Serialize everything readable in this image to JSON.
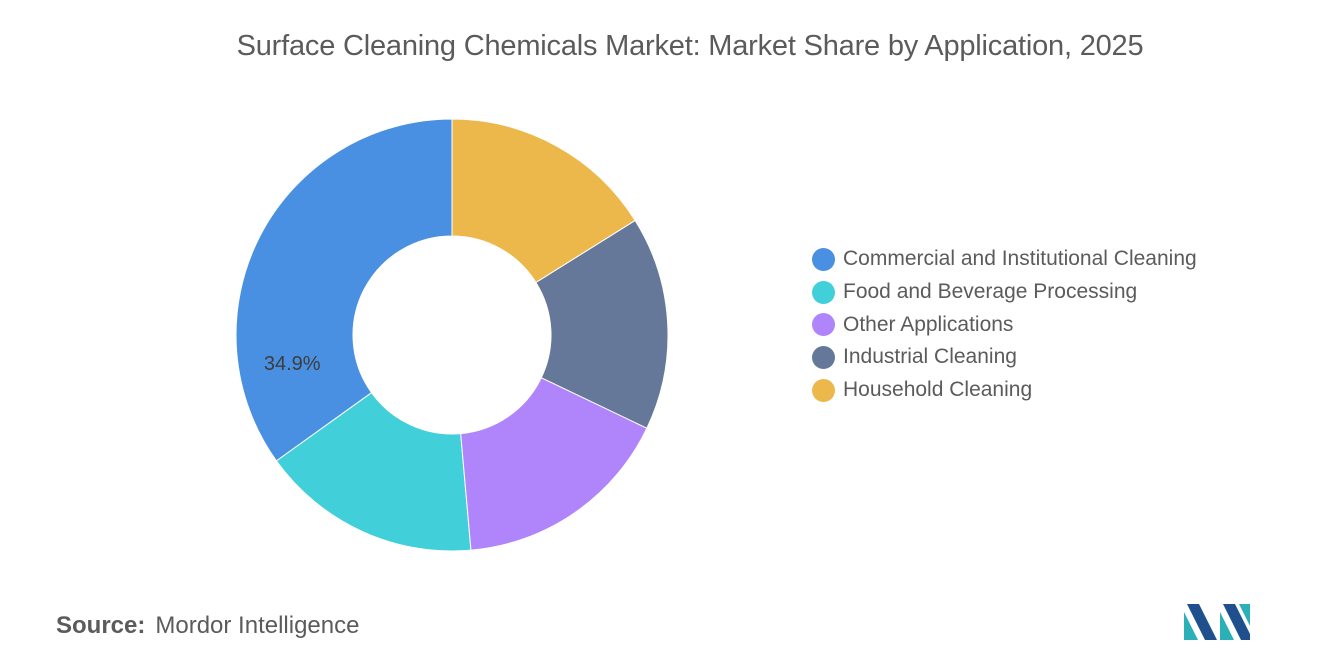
{
  "chart_data": {
    "type": "pie",
    "variant": "donut",
    "title": "Surface Cleaning Chemicals Market: Market Share by Application, 2025",
    "categories": [
      "Commercial and Institutional Cleaning",
      "Food and Beverage Processing",
      "Other Applications",
      "Industrial Cleaning",
      "Household Cleaning"
    ],
    "values": [
      34.9,
      16.5,
      16.5,
      16.0,
      16.1
    ],
    "data_labels": [
      "34.9%",
      "",
      "",
      "",
      ""
    ],
    "colors": [
      "#4a90e2",
      "#41cfda",
      "#b084fb",
      "#65789a",
      "#ecb84c"
    ],
    "legend_position": "right"
  },
  "source": {
    "label": "Source:",
    "value": "Mordor Intelligence"
  },
  "logo_icon": "mordor-intelligence-logo-icon"
}
